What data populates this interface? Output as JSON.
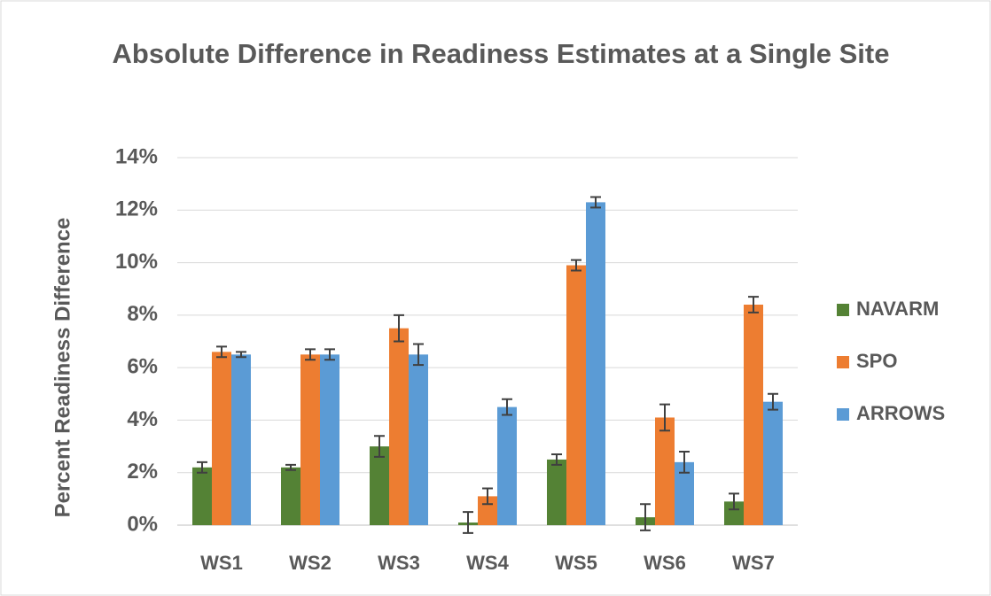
{
  "chart_data": {
    "type": "bar",
    "title": "Absolute Difference in Readiness Estimates at a Single Site",
    "y_label": "Percent Readiness Difference",
    "categories": [
      "WS1",
      "WS2",
      "WS3",
      "WS4",
      "WS5",
      "WS6",
      "WS7"
    ],
    "series": [
      {
        "name": "NAVARM",
        "color": "#548235",
        "values": [
          2.2,
          2.2,
          3.0,
          0.1,
          2.5,
          0.3,
          0.9
        ],
        "errors": [
          0.2,
          0.1,
          0.4,
          0.4,
          0.2,
          0.5,
          0.3
        ]
      },
      {
        "name": "SPO",
        "color": "#ed7d31",
        "values": [
          6.6,
          6.5,
          7.5,
          1.1,
          9.9,
          4.1,
          8.4
        ],
        "errors": [
          0.2,
          0.2,
          0.5,
          0.3,
          0.2,
          0.5,
          0.3
        ]
      },
      {
        "name": "ARROWS",
        "color": "#5b9bd5",
        "values": [
          6.5,
          6.5,
          6.5,
          4.5,
          12.3,
          2.4,
          4.7
        ],
        "errors": [
          0.1,
          0.2,
          0.4,
          0.3,
          0.2,
          0.4,
          0.3
        ]
      }
    ],
    "ylim": [
      0,
      14
    ],
    "yticks": [
      {
        "value": 0,
        "label": "0%"
      },
      {
        "value": 2,
        "label": "2%"
      },
      {
        "value": 4,
        "label": "4%"
      },
      {
        "value": 6,
        "label": "6%"
      },
      {
        "value": 8,
        "label": "8%"
      },
      {
        "value": 10,
        "label": "10%"
      },
      {
        "value": 12,
        "label": "12%"
      },
      {
        "value": 14,
        "label": "14%"
      }
    ],
    "grid": true,
    "legend": "right"
  }
}
